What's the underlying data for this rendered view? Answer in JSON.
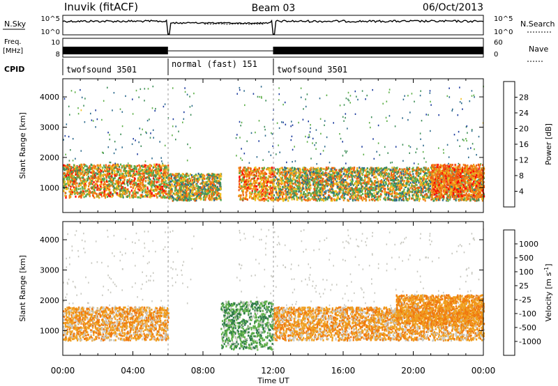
{
  "header": {
    "station": "Inuvik (fitACF)",
    "beam": "Beam 03",
    "date": "06/Oct/2013"
  },
  "strip_labels": {
    "nsky": "N.Sky",
    "nsky_ticks": [
      "10^5",
      "10^0"
    ],
    "nsearch": "N.Search",
    "freq_line1": "Freq.",
    "freq_line2": "[MHz]",
    "freq_ticks": [
      "10",
      "8"
    ],
    "nave": "Nave",
    "nave_ticks": [
      "60",
      "0"
    ],
    "cpid": "CPID",
    "right_ticks_top": [
      "10^5",
      "10^0"
    ]
  },
  "cpid_segments": [
    {
      "label": "twofsound 3501",
      "start_ut": 0,
      "end_ut": 6
    },
    {
      "label": "normal (fast) 151",
      "start_ut": 6,
      "end_ut": 12
    },
    {
      "label": "twofsound 3501",
      "start_ut": 12,
      "end_ut": 24
    }
  ],
  "axes": {
    "x_label": "Time UT",
    "y_label": "Slant Range [km]",
    "x_ticks": [
      "00:00",
      "04:00",
      "08:00",
      "12:00",
      "16:00",
      "20:00",
      "00:00"
    ],
    "y_ticks": [
      "1000",
      "2000",
      "3000",
      "4000"
    ]
  },
  "power_colorbar": {
    "label": "Power [dB]",
    "ticks": [
      "28",
      "24",
      "20",
      "16",
      "12",
      "8",
      "4"
    ],
    "colors": [
      "#0000ff",
      "#1e3d9e",
      "#2e6b8e",
      "#3f8f5a",
      "#5fb04a",
      "#f0c020",
      "#f08a1a",
      "#f05a10",
      "#ff0000"
    ]
  },
  "velocity_colorbar": {
    "label": "Velocity [m s^-1]",
    "ticks": [
      "1000",
      "500",
      "100",
      "25",
      "-25",
      "-100",
      "-500",
      "-1000"
    ],
    "colors": [
      "#1e3da8",
      "#2e5a9e",
      "#2e7a4a",
      "#5fb04a",
      "#c8c8c0",
      "#f0a020",
      "#f07a10",
      "#f04a10",
      "#ff0000"
    ]
  },
  "chart_data": [
    {
      "type": "heatmap",
      "title": "Power",
      "xlabel": "Time UT",
      "ylabel": "Slant Range [km]",
      "xlim_ut_hours": [
        0,
        24
      ],
      "ylim_km": [
        180,
        4600
      ],
      "colorbar_label": "Power [dB]",
      "colorbar_range_db": [
        0,
        32
      ],
      "features": [
        {
          "ut": [
            0,
            6
          ],
          "range_km": [
            700,
            1800
          ],
          "power_db": [
            12,
            30
          ]
        },
        {
          "ut": [
            6,
            9
          ],
          "range_km": [
            600,
            1500
          ],
          "power_db": [
            8,
            28
          ]
        },
        {
          "ut": [
            10,
            12
          ],
          "range_km": [
            600,
            1700
          ],
          "power_db": [
            16,
            30
          ]
        },
        {
          "ut": [
            12,
            24
          ],
          "range_km": [
            600,
            1700
          ],
          "power_db": [
            8,
            28
          ]
        },
        {
          "ut": [
            21,
            24
          ],
          "range_km": [
            700,
            1800
          ],
          "power_db": [
            20,
            30
          ]
        }
      ]
    },
    {
      "type": "heatmap",
      "title": "Velocity",
      "xlabel": "Time UT",
      "ylabel": "Slant Range [km]",
      "xlim_ut_hours": [
        0,
        24
      ],
      "ylim_km": [
        180,
        4600
      ],
      "colorbar_label": "Velocity [m s^-1]",
      "colorbar_range_ms": [
        -1000,
        1000
      ],
      "features": [
        {
          "ut": [
            0,
            6
          ],
          "range_km": [
            700,
            1800
          ],
          "velocity_ms": [
            -500,
            25
          ]
        },
        {
          "ut": [
            9,
            12
          ],
          "range_km": [
            400,
            2000
          ],
          "velocity_ms": [
            25,
            500
          ]
        },
        {
          "ut": [
            12,
            24
          ],
          "range_km": [
            700,
            1800
          ],
          "velocity_ms": [
            -500,
            25
          ]
        },
        {
          "ut": [
            19,
            24
          ],
          "range_km": [
            1200,
            2200
          ],
          "velocity_ms": [
            -500,
            -100
          ]
        }
      ]
    }
  ]
}
